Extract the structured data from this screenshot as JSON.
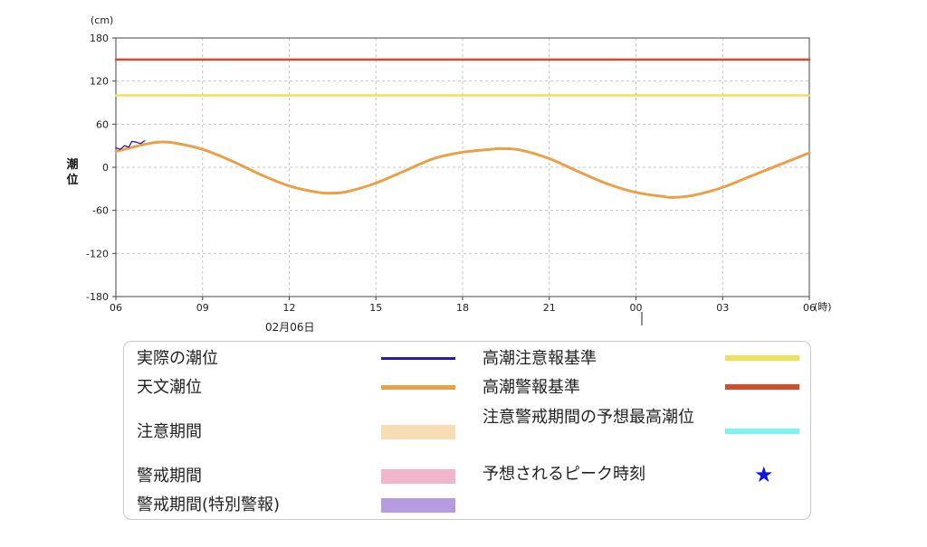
{
  "chart_data": {
    "type": "line",
    "y_unit": "(cm)",
    "x_unit": "(時)",
    "ylabel": "潮位",
    "ylim": [
      -180,
      180
    ],
    "y_ticks": [
      "180",
      "120",
      "60",
      "0",
      "-60",
      "-120",
      "-180"
    ],
    "x_ticks": [
      "06",
      "09",
      "12",
      "15",
      "18",
      "21",
      "00",
      "03",
      "06"
    ],
    "x_range_hours": [
      6,
      30
    ],
    "date_label": "02月06日",
    "grid": true,
    "series": [
      {
        "name": "高潮警報基準",
        "color": "#d94a2b",
        "x_hours": [
          6,
          30
        ],
        "values": [
          150,
          150
        ]
      },
      {
        "name": "高潮注意報基準",
        "color": "#f2e05a",
        "x_hours": [
          6,
          30
        ],
        "values": [
          100,
          100
        ]
      },
      {
        "name": "天文潮位",
        "color": "#e8a14a",
        "x_hours": [
          6,
          7,
          7.5,
          8,
          9,
          10,
          11,
          12,
          13,
          13.5,
          14,
          15,
          16,
          17,
          18,
          19,
          19.3,
          20,
          21,
          22,
          23,
          24,
          25,
          25.3,
          26,
          27,
          28,
          29,
          30
        ],
        "values": [
          22,
          32,
          35,
          34,
          25,
          9,
          -10,
          -26,
          -35,
          -36,
          -34,
          -22,
          -5,
          12,
          21,
          25,
          26,
          24,
          12,
          -6,
          -23,
          -35,
          -41,
          -42,
          -39,
          -28,
          -12,
          4,
          20
        ]
      },
      {
        "name": "実際の潮位",
        "color": "#2a1aa8",
        "x_hours": [
          6,
          6.15,
          6.3,
          6.45,
          6.55,
          6.7,
          6.85,
          7.0
        ],
        "values": [
          27,
          25,
          30,
          28,
          36,
          35,
          33,
          37
        ]
      }
    ]
  },
  "legend": {
    "actual": "実際の潮位",
    "astronomical": "天文潮位",
    "caution_period": "注意期間",
    "warning_period": "警戒期間",
    "warning_period_special": "警戒期間(特別警報)",
    "advisory_level": "高潮注意報基準",
    "warning_level": "高潮警報基準",
    "forecast_peak_level": "注意警戒期間の予想最高潮位",
    "forecast_peak_time": "予想されるピーク時刻",
    "star_icon": "★"
  },
  "colors": {
    "actual": "#2a1aa8",
    "astronomical": "#e8a14a",
    "caution_period": "#f7dcb4",
    "warning_period": "#f2b6cc",
    "warning_period_special": "#b59be0",
    "advisory_level": "#f2e05a",
    "warning_level": "#d94a2b",
    "forecast_peak_level": "#7ef1f1",
    "star": "#1018d8"
  }
}
